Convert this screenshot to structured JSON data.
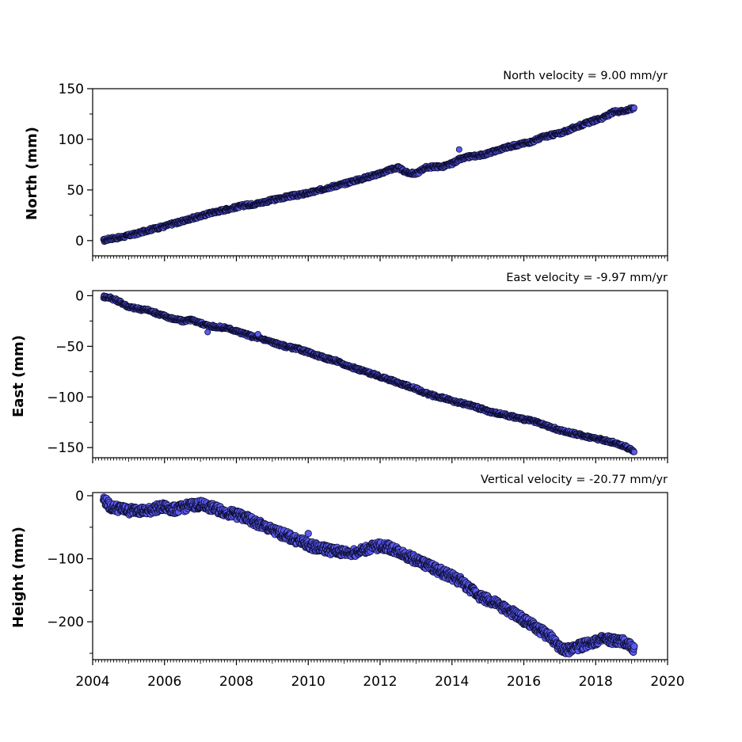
{
  "colors": {
    "marker_fill": "#5b5bf2",
    "marker_edge": "#0d0d30",
    "axes": "#000000",
    "background": "#ffffff"
  },
  "chart_data": [
    {
      "type": "scatter",
      "id": "north",
      "title": "North velocity = 9.00 mm/yr",
      "xlabel": "",
      "ylabel": "North (mm)",
      "xlim": [
        2004,
        2020
      ],
      "ylim": [
        -15,
        150
      ],
      "yticks": [
        0,
        50,
        100,
        150
      ],
      "ytick_labels": [
        "0",
        "50",
        "100",
        "150"
      ],
      "xtick_labels_shown": false,
      "grid": false,
      "series": [
        {
          "x": [
            2004.3,
            2004.5,
            2004.75,
            2005.0,
            2005.25,
            2005.5,
            2005.75,
            2006.0,
            2006.25,
            2006.5,
            2006.75,
            2007.0,
            2007.25,
            2007.5,
            2007.75,
            2008.0,
            2008.25,
            2008.5,
            2008.75,
            2009.0,
            2009.25,
            2009.5,
            2009.75,
            2010.0,
            2010.25,
            2010.5,
            2010.75,
            2011.0,
            2011.25,
            2011.5,
            2011.75,
            2012.0,
            2012.25,
            2012.5,
            2012.75,
            2013.0,
            2013.25,
            2013.5,
            2013.75,
            2014.0,
            2014.2,
            2014.5,
            2014.75,
            2015.0,
            2015.25,
            2015.5,
            2015.75,
            2016.0,
            2016.25,
            2016.5,
            2016.75,
            2017.0,
            2017.25,
            2017.5,
            2017.75,
            2018.0,
            2018.25,
            2018.5,
            2018.75,
            2019.0,
            2019.08
          ],
          "y": [
            0,
            2,
            3,
            5,
            7,
            10,
            12,
            14,
            17,
            19,
            22,
            24,
            27,
            29,
            31,
            33,
            35,
            36,
            38,
            40,
            42,
            44,
            45,
            47,
            49,
            52,
            54,
            56,
            59,
            61,
            64,
            66,
            70,
            72,
            67,
            66,
            72,
            73,
            73,
            76,
            80,
            83,
            84,
            86,
            89,
            92,
            94,
            96,
            98,
            102,
            104,
            106,
            109,
            113,
            116,
            119,
            122,
            127,
            128,
            130,
            132
          ]
        }
      ]
    },
    {
      "type": "scatter",
      "id": "east",
      "title": "East velocity = -9.97 mm/yr",
      "xlabel": "",
      "ylabel": "East (mm)",
      "xlim": [
        2004,
        2020
      ],
      "ylim": [
        -160,
        5
      ],
      "yticks": [
        -150,
        -100,
        -50,
        0
      ],
      "ytick_labels": [
        "−150",
        "−100",
        "−50",
        "0"
      ],
      "xtick_labels_shown": false,
      "grid": false,
      "series": [
        {
          "x": [
            2004.3,
            2004.5,
            2004.75,
            2005.0,
            2005.25,
            2005.5,
            2005.75,
            2006.0,
            2006.25,
            2006.5,
            2006.75,
            2007.0,
            2007.25,
            2007.5,
            2007.75,
            2008.0,
            2008.25,
            2008.5,
            2008.75,
            2009.0,
            2009.25,
            2009.5,
            2009.75,
            2010.0,
            2010.25,
            2010.5,
            2010.75,
            2011.0,
            2011.25,
            2011.5,
            2011.75,
            2012.0,
            2012.25,
            2012.5,
            2012.75,
            2013.0,
            2013.25,
            2013.5,
            2013.75,
            2014.0,
            2014.25,
            2014.5,
            2014.75,
            2015.0,
            2015.25,
            2015.5,
            2015.75,
            2016.0,
            2016.25,
            2016.5,
            2016.75,
            2017.0,
            2017.25,
            2017.5,
            2017.75,
            2018.0,
            2018.25,
            2018.5,
            2018.75,
            2019.0,
            2019.08
          ],
          "y": [
            -1,
            -2,
            -6,
            -11,
            -13,
            -14,
            -17,
            -20,
            -23,
            -25,
            -24,
            -27,
            -30,
            -31,
            -32,
            -35,
            -38,
            -41,
            -43,
            -46,
            -49,
            -51,
            -53,
            -56,
            -59,
            -62,
            -64,
            -68,
            -71,
            -74,
            -77,
            -80,
            -83,
            -86,
            -89,
            -92,
            -96,
            -99,
            -101,
            -104,
            -106,
            -108,
            -111,
            -114,
            -116,
            -118,
            -120,
            -122,
            -124,
            -127,
            -130,
            -133,
            -135,
            -137,
            -139,
            -141,
            -143,
            -145,
            -148,
            -152,
            -155
          ]
        }
      ]
    },
    {
      "type": "scatter",
      "id": "height",
      "title": "Vertical velocity = -20.77 mm/yr",
      "xlabel": "",
      "ylabel": "Height (mm)",
      "xlim": [
        2004,
        2020
      ],
      "ylim": [
        -260,
        5
      ],
      "yticks": [
        -200,
        -100,
        0
      ],
      "ytick_labels": [
        "−200",
        "−100",
        "0"
      ],
      "xticks": [
        2004,
        2006,
        2008,
        2010,
        2012,
        2014,
        2016,
        2018,
        2020
      ],
      "xtick_labels": [
        "2004",
        "2006",
        "2008",
        "2010",
        "2012",
        "2014",
        "2016",
        "2018",
        "2020"
      ],
      "xtick_labels_shown": true,
      "grid": false,
      "series": [
        {
          "x": [
            2004.3,
            2004.5,
            2004.75,
            2005.0,
            2005.25,
            2005.5,
            2005.75,
            2006.0,
            2006.25,
            2006.5,
            2006.75,
            2007.0,
            2007.25,
            2007.5,
            2007.75,
            2008.0,
            2008.25,
            2008.5,
            2008.75,
            2009.0,
            2009.25,
            2009.5,
            2009.75,
            2010.0,
            2010.25,
            2010.5,
            2010.75,
            2011.0,
            2011.25,
            2011.5,
            2011.75,
            2012.0,
            2012.25,
            2012.5,
            2012.75,
            2013.0,
            2013.25,
            2013.5,
            2013.75,
            2014.0,
            2014.25,
            2014.5,
            2014.75,
            2015.0,
            2015.25,
            2015.5,
            2015.75,
            2016.0,
            2016.25,
            2016.5,
            2016.75,
            2017.0,
            2017.25,
            2017.5,
            2017.75,
            2018.0,
            2018.25,
            2018.5,
            2018.75,
            2019.0,
            2019.08
          ],
          "y": [
            -5,
            -18,
            -20,
            -24,
            -22,
            -25,
            -20,
            -18,
            -22,
            -19,
            -15,
            -14,
            -18,
            -22,
            -27,
            -30,
            -35,
            -42,
            -48,
            -55,
            -60,
            -66,
            -72,
            -78,
            -82,
            -85,
            -88,
            -90,
            -90,
            -87,
            -82,
            -80,
            -82,
            -88,
            -95,
            -102,
            -108,
            -115,
            -122,
            -128,
            -136,
            -148,
            -158,
            -165,
            -172,
            -180,
            -188,
            -197,
            -206,
            -215,
            -225,
            -240,
            -245,
            -240,
            -235,
            -230,
            -228,
            -230,
            -232,
            -238,
            -245
          ]
        }
      ]
    }
  ]
}
